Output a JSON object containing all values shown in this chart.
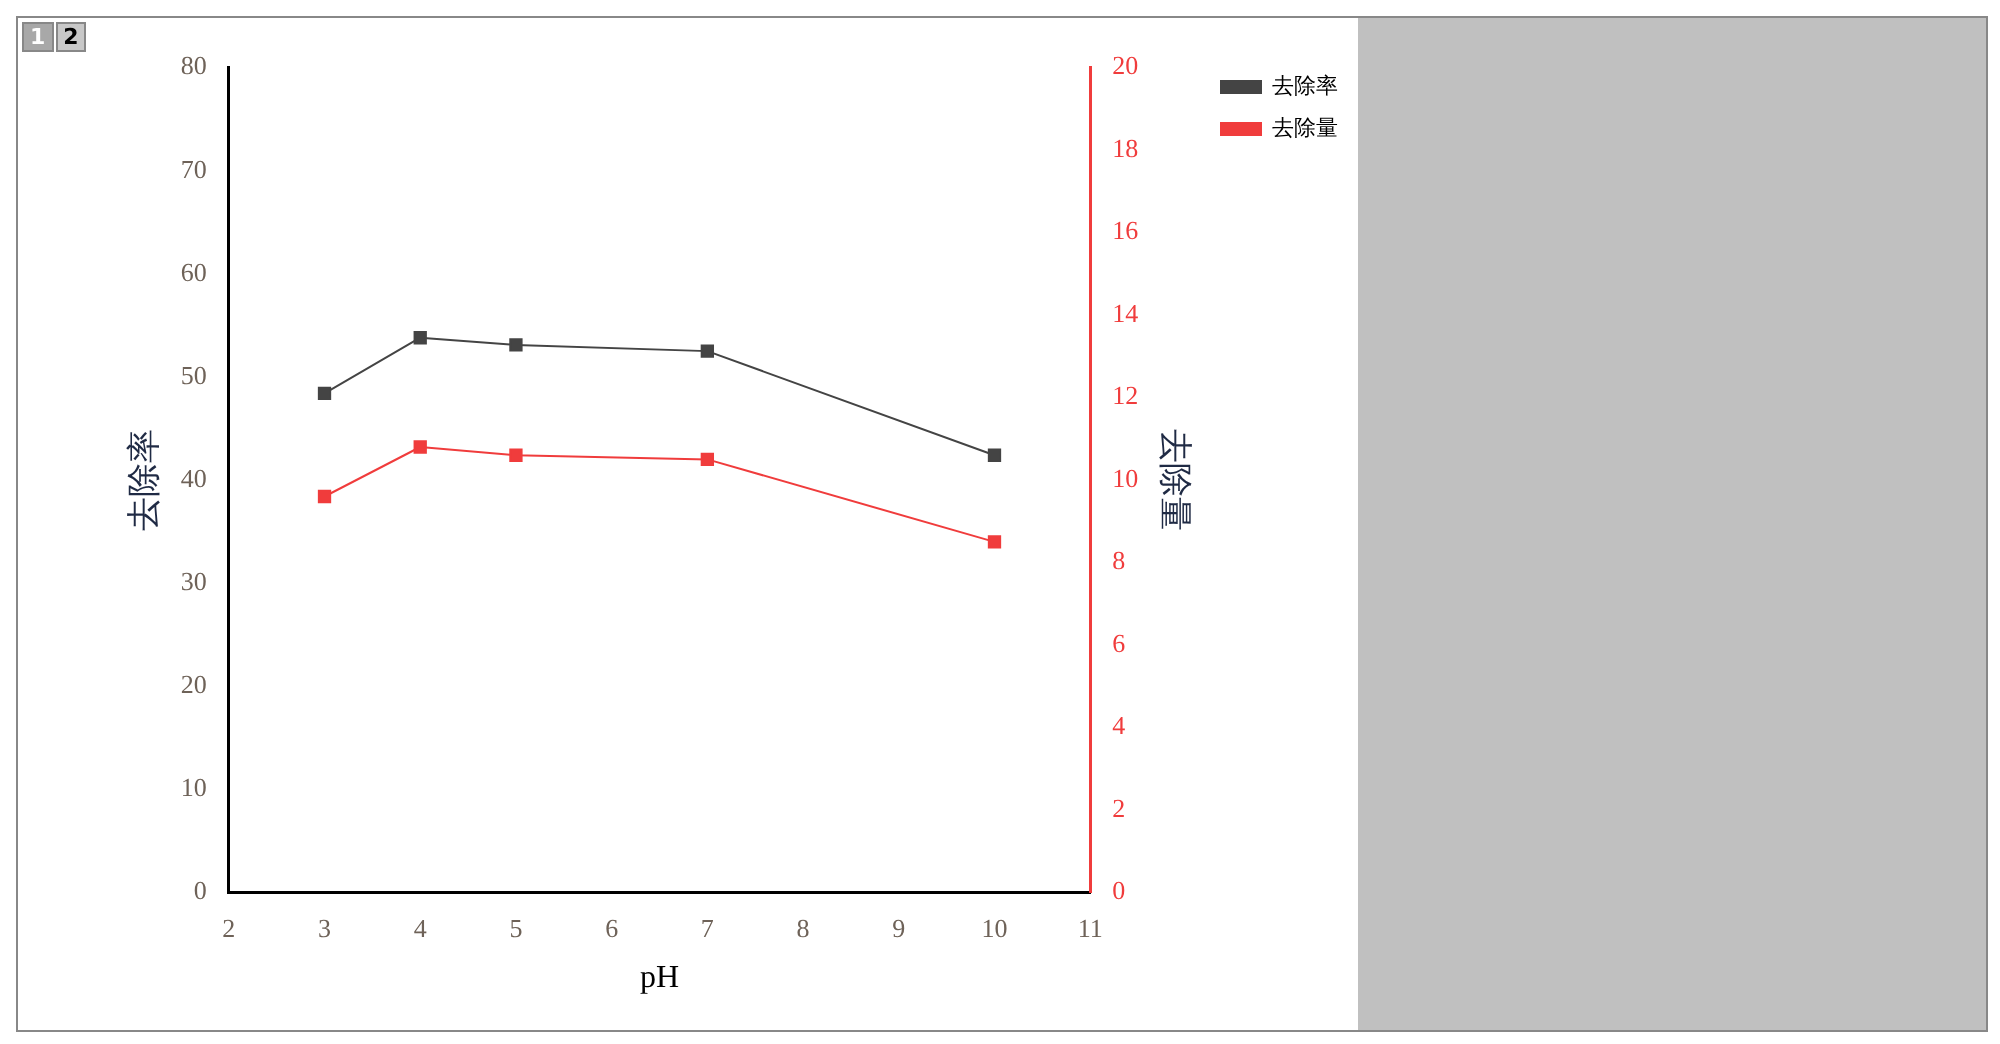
{
  "chart_data": {
    "type": "line",
    "xlabel": "pH",
    "ylabel": "去除率",
    "y2label": "去除量",
    "x": [
      3,
      4,
      5,
      7,
      10
    ],
    "series": [
      {
        "name": "去除率",
        "color": "#444444",
        "values": [
          48.4,
          53.8,
          53.1,
          52.5,
          42.4
        ]
      },
      {
        "name": "去除量",
        "color": "#f03c3c",
        "values": [
          9.6,
          10.8,
          10.6,
          10.5,
          8.5
        ],
        "axis": "y2"
      }
    ],
    "xlim": [
      2,
      11
    ],
    "xticks": [
      2,
      3,
      4,
      5,
      6,
      7,
      8,
      9,
      10,
      11
    ],
    "ylim": [
      0,
      80
    ],
    "yticks": [
      0,
      10,
      20,
      30,
      40,
      50,
      60,
      70,
      80
    ],
    "y2lim": [
      0,
      20
    ],
    "y2ticks": [
      0,
      2,
      4,
      6,
      8,
      10,
      12,
      14,
      16,
      18,
      20
    ],
    "annotations": [
      "1",
      "2"
    ],
    "legend": "top right",
    "marker": "square",
    "line_style": "solid",
    "grid": false
  }
}
